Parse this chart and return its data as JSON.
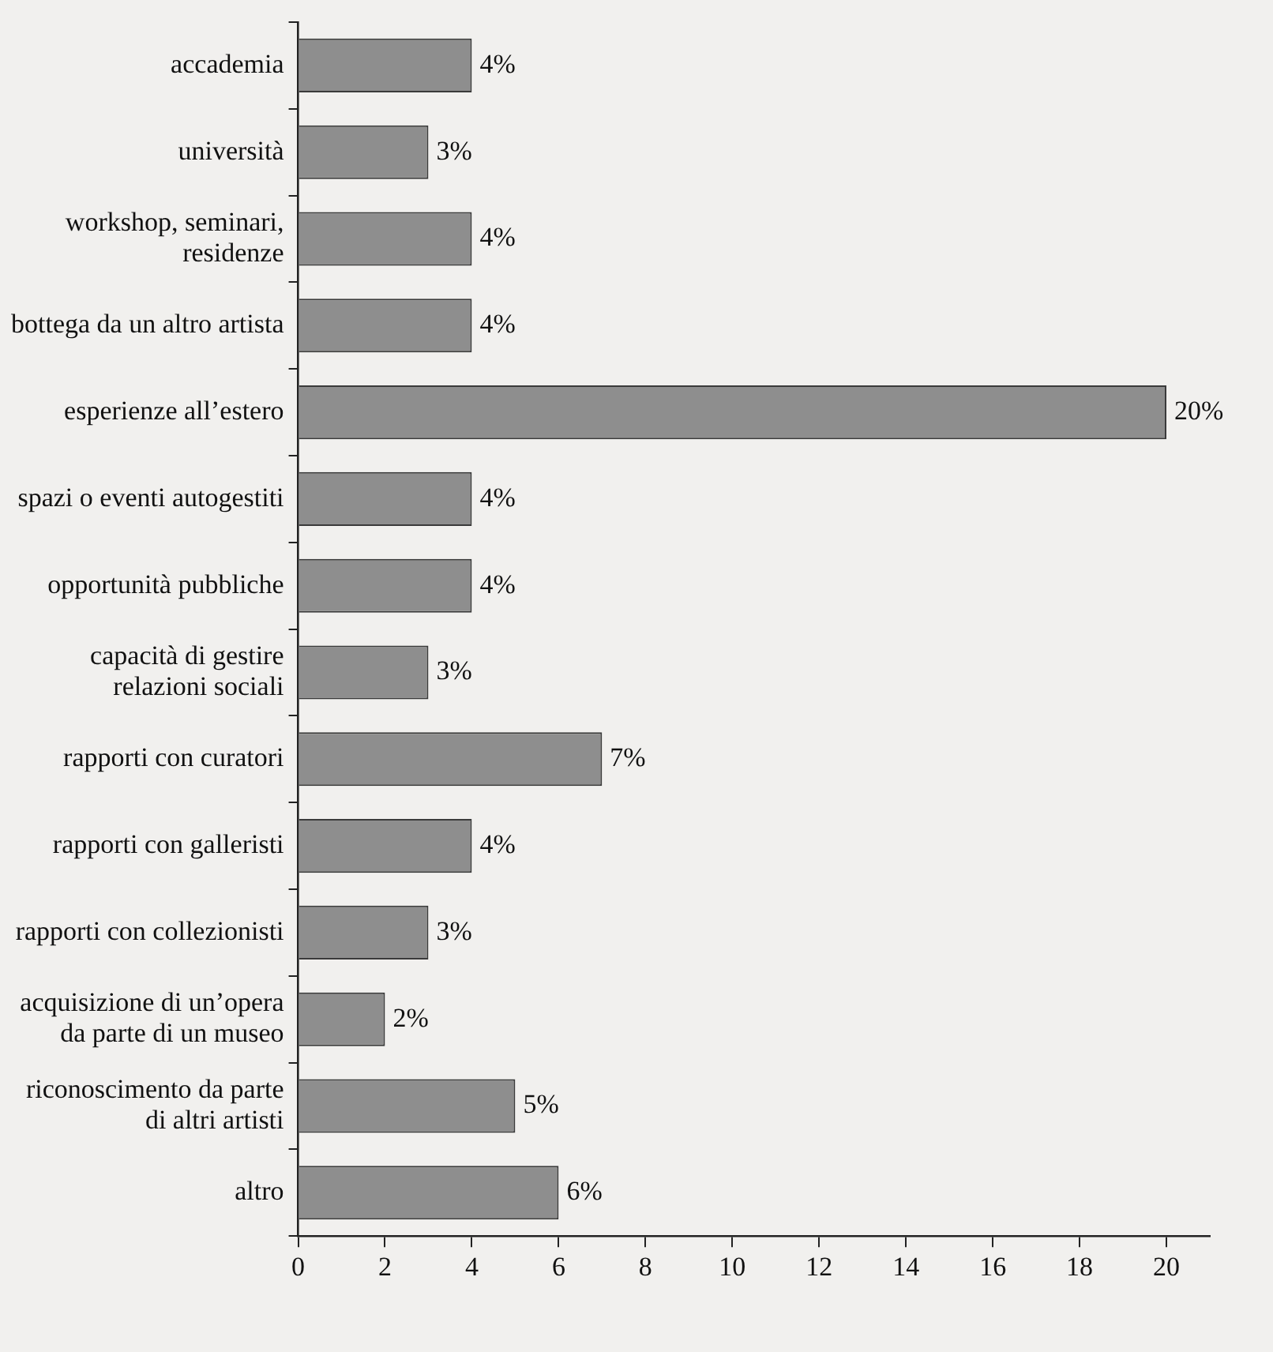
{
  "chart_data": {
    "type": "bar",
    "orientation": "horizontal",
    "categories": [
      "accademia",
      "università",
      "workshop, seminari, residenze",
      "bottega da un altro artista",
      "esperienze all’estero",
      "spazi o eventi autogestiti",
      "opportunità pubbliche",
      "capacità di gestire relazioni sociali",
      "rapporti con curatori",
      "rapporti con galleristi",
      "rapporti con collezionisti",
      "acquisizione di un’opera da parte di un museo",
      "riconoscimento da parte di altri artisti",
      "altro"
    ],
    "values": [
      4,
      3,
      4,
      4,
      20,
      4,
      4,
      3,
      7,
      4,
      3,
      2,
      5,
      6
    ],
    "value_labels": [
      "4%",
      "3%",
      "4%",
      "4%",
      "20%",
      "4%",
      "4%",
      "3%",
      "7%",
      "4%",
      "3%",
      "2%",
      "5%",
      "6%"
    ],
    "color": "#8e8e8e",
    "xlim": [
      0,
      21
    ],
    "xticks": [
      0,
      2,
      4,
      6,
      8,
      10,
      12,
      14,
      16,
      18,
      20
    ],
    "grid": false,
    "legend": false
  }
}
